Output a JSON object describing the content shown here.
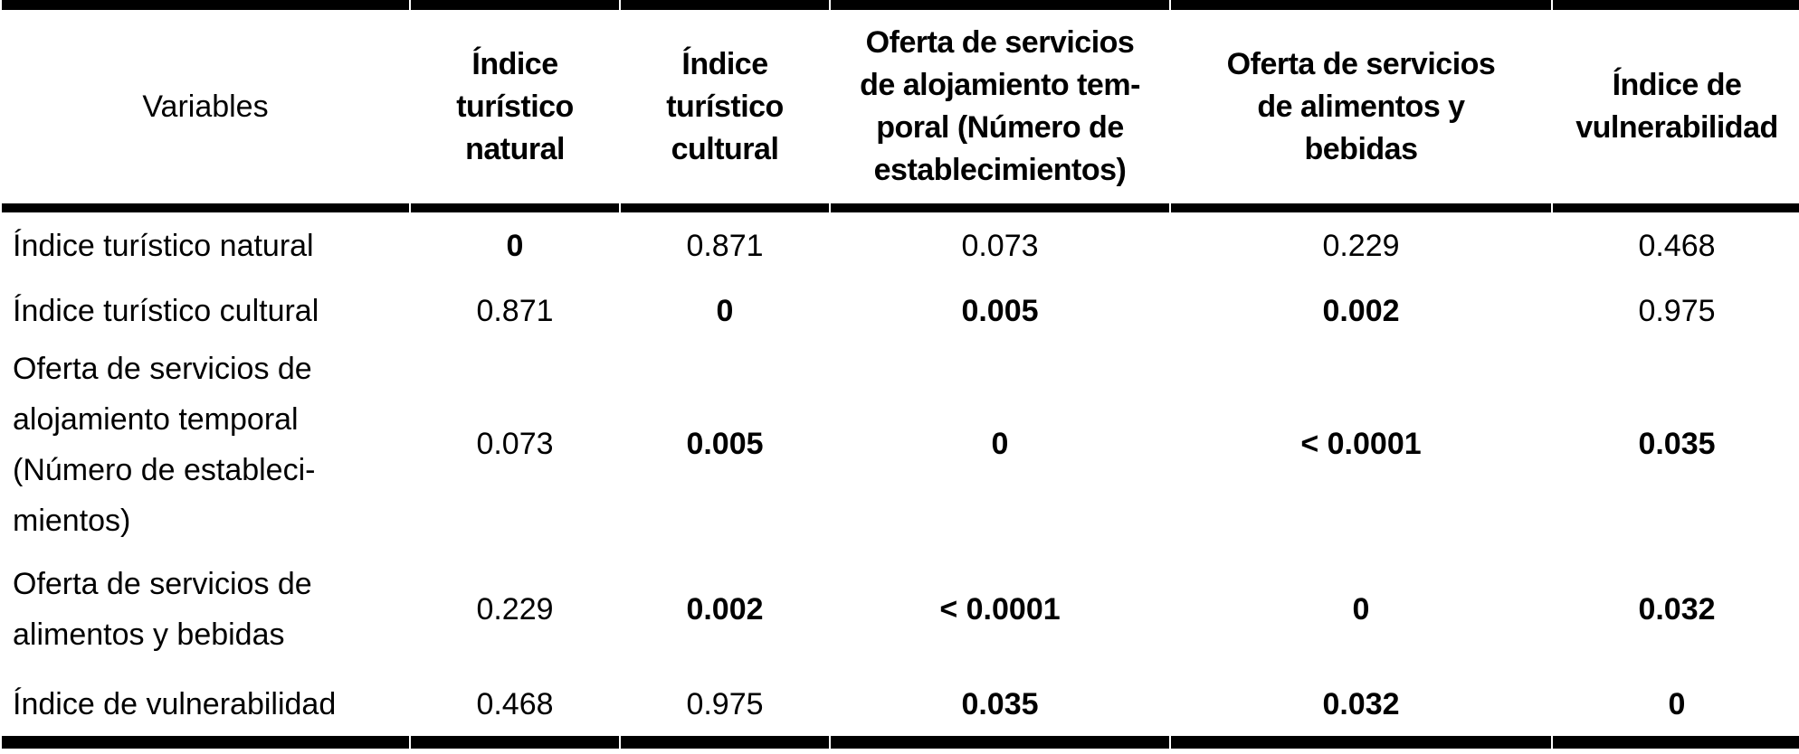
{
  "meta": {
    "content_type": "academic-paper-table",
    "language": "es",
    "text_color": "#000000",
    "rule_color": "#000000",
    "background_color": "#ffffff"
  },
  "table": {
    "columns": [
      {
        "label": "Variables"
      },
      {
        "label": "Índice\nturístico\nnatural"
      },
      {
        "label": "Índice\nturístico\ncultural"
      },
      {
        "label": "Oferta de servicios\nde alojamiento tem-\nporal (Número de\nestablecimientos)"
      },
      {
        "label": "Oferta de servicios\nde alimentos y\nbebidas"
      },
      {
        "label": "Índice de\nvulnerabilidad"
      }
    ],
    "rows": [
      {
        "label": "Índice turístico natural",
        "cells": [
          {
            "v": "0",
            "bold": true
          },
          {
            "v": "0.871",
            "bold": false
          },
          {
            "v": "0.073",
            "bold": false
          },
          {
            "v": "0.229",
            "bold": false
          },
          {
            "v": "0.468",
            "bold": false
          }
        ]
      },
      {
        "label": "Índice turístico cultural",
        "cells": [
          {
            "v": "0.871",
            "bold": false
          },
          {
            "v": "0",
            "bold": true
          },
          {
            "v": "0.005",
            "bold": true
          },
          {
            "v": "0.002",
            "bold": true
          },
          {
            "v": "0.975",
            "bold": false
          }
        ]
      },
      {
        "label": "Oferta de servicios de\nalojamiento temporal\n(Número de estableci-\nmientos)",
        "cells": [
          {
            "v": "0.073",
            "bold": false
          },
          {
            "v": "0.005",
            "bold": true
          },
          {
            "v": "0",
            "bold": true
          },
          {
            "v": "< 0.0001",
            "bold": true
          },
          {
            "v": "0.035",
            "bold": true
          }
        ]
      },
      {
        "label": "Oferta de servicios de\nalimentos y bebidas",
        "cells": [
          {
            "v": "0.229",
            "bold": false
          },
          {
            "v": "0.002",
            "bold": true
          },
          {
            "v": "< 0.0001",
            "bold": true
          },
          {
            "v": "0",
            "bold": true
          },
          {
            "v": "0.032",
            "bold": true
          }
        ]
      },
      {
        "label": "Índice de vulnerabilidad",
        "cells": [
          {
            "v": "0.468",
            "bold": false
          },
          {
            "v": "0.975",
            "bold": false
          },
          {
            "v": "0.035",
            "bold": true
          },
          {
            "v": "0.032",
            "bold": true
          },
          {
            "v": "0",
            "bold": true
          }
        ]
      }
    ]
  }
}
